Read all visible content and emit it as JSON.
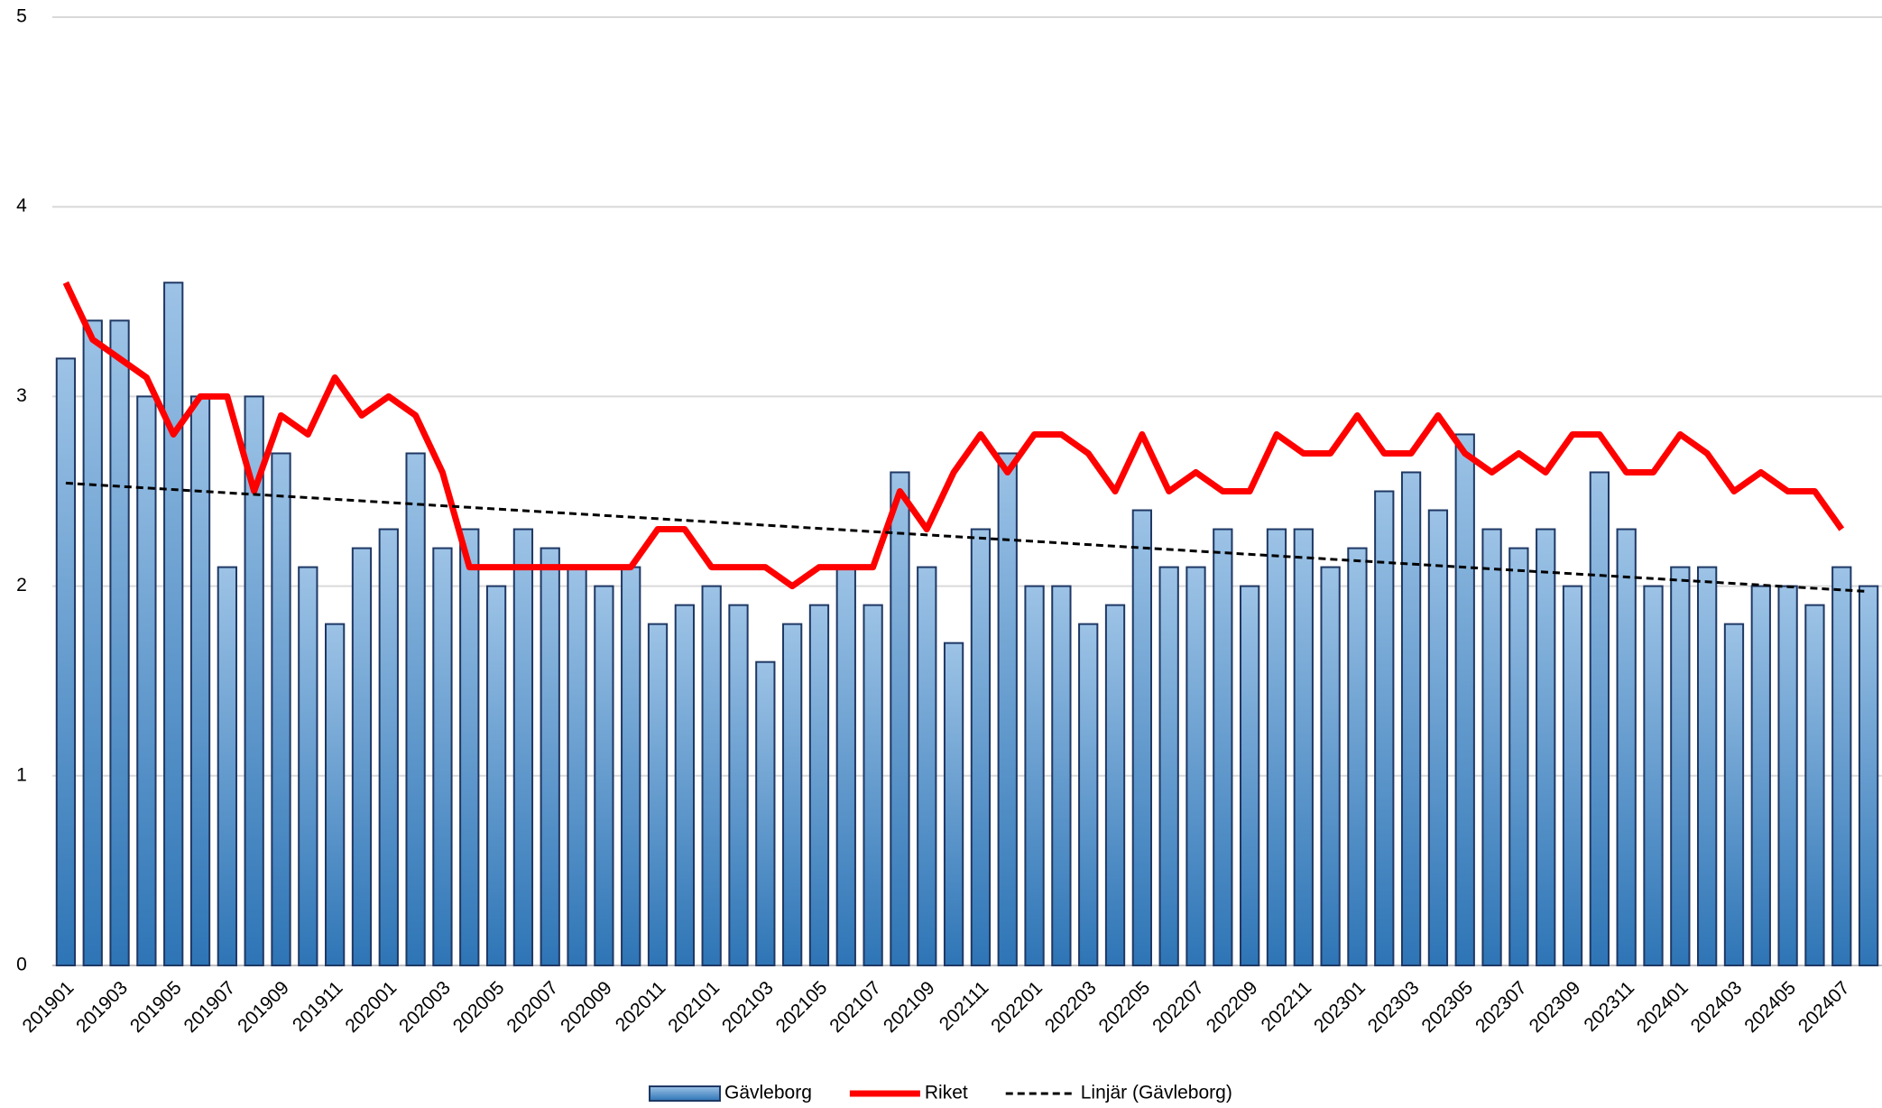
{
  "chart_data": {
    "type": "bar-line",
    "categories": [
      "201901",
      null,
      "201903",
      null,
      "201905",
      null,
      "201907",
      null,
      "201909",
      null,
      "201911",
      null,
      "202001",
      null,
      "202003",
      null,
      "202005",
      null,
      "202007",
      null,
      "202009",
      null,
      "202011",
      null,
      "202101",
      null,
      "202103",
      null,
      "202105",
      null,
      "202107",
      null,
      "202109",
      null,
      "202111",
      null,
      "202201",
      null,
      "202203",
      null,
      "202205",
      null,
      "202207",
      null,
      "202209",
      null,
      "202211",
      null,
      "202301",
      null,
      "202303",
      null,
      "202305",
      null,
      "202307",
      null,
      "202309",
      null,
      "202311",
      null,
      "202401",
      null,
      "202403",
      null,
      "202405",
      null,
      "202407",
      null
    ],
    "series": [
      {
        "name": "Gävleborg",
        "type": "bar",
        "color": "#5b9bd5",
        "values": [
          3.2,
          3.4,
          3.4,
          3.0,
          3.6,
          3.0,
          2.1,
          3.0,
          2.7,
          2.1,
          1.8,
          2.2,
          2.3,
          2.7,
          2.2,
          2.3,
          2.0,
          2.3,
          2.2,
          2.1,
          2.0,
          2.1,
          1.8,
          1.9,
          2.0,
          1.9,
          1.6,
          1.8,
          1.9,
          2.1,
          1.9,
          2.6,
          2.1,
          1.7,
          2.3,
          2.7,
          2.0,
          2.0,
          1.8,
          1.9,
          2.4,
          2.1,
          2.1,
          2.3,
          2.0,
          2.3,
          2.3,
          2.1,
          2.2,
          2.5,
          2.6,
          2.4,
          2.8,
          2.3,
          2.2,
          2.3,
          2.0,
          2.6,
          2.3,
          2.0,
          2.1,
          2.1,
          1.8,
          2.0,
          2.0,
          1.9,
          2.1,
          2.0
        ]
      },
      {
        "name": "Riket",
        "type": "line",
        "color": "#ff0000",
        "values": [
          3.6,
          3.3,
          3.2,
          3.1,
          2.8,
          3.0,
          3.0,
          2.5,
          2.9,
          2.8,
          3.1,
          2.9,
          3.0,
          2.9,
          2.6,
          2.1,
          2.1,
          2.1,
          2.1,
          2.1,
          2.1,
          2.1,
          2.3,
          2.3,
          2.1,
          2.1,
          2.1,
          2.0,
          2.1,
          2.1,
          2.1,
          2.5,
          2.3,
          2.6,
          2.8,
          2.6,
          2.8,
          2.8,
          2.7,
          2.5,
          2.8,
          2.5,
          2.6,
          2.5,
          2.5,
          2.8,
          2.7,
          2.7,
          2.9,
          2.7,
          2.7,
          2.9,
          2.7,
          2.6,
          2.7,
          2.6,
          2.8,
          2.8,
          2.6,
          2.6,
          2.8,
          2.7,
          2.5,
          2.6,
          2.5,
          2.5,
          2.3,
          null
        ]
      }
    ],
    "trendline": {
      "name": "Linjär (Gävleborg)",
      "color": "#000000"
    },
    "ylim": [
      0,
      5
    ],
    "yticks": [
      0,
      1,
      2,
      3,
      4,
      5
    ],
    "grid": true
  }
}
